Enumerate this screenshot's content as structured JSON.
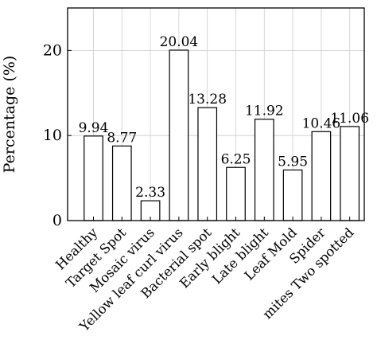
{
  "chart_data": {
    "type": "bar",
    "categories": [
      "Healthy",
      "Target Spot",
      "Mosaic virus",
      "Yellow leaf curl virus",
      "Bacterial spot",
      "Early blight",
      "Late blight",
      "Leaf Mold",
      "Spider",
      "mites Two spotted"
    ],
    "values": [
      9.94,
      8.77,
      2.33,
      20.04,
      13.28,
      6.25,
      11.92,
      5.95,
      10.46,
      11.06
    ],
    "data_labels": [
      "9.94",
      "8.77",
      "2.33",
      "20.04",
      "13.28",
      "6.25",
      "11.92",
      "5.95",
      "10.46",
      "11.06"
    ],
    "title": "",
    "xlabel": "",
    "ylabel": "Percentage (%)",
    "ylim": [
      0,
      25
    ],
    "yticks": [
      0,
      10,
      20
    ],
    "ytick_labels": [
      "0",
      "10",
      "20"
    ],
    "grid": true,
    "bar_fill": "#ffffff",
    "bar_stroke": "#000000",
    "grid_color": "#cccccc"
  }
}
